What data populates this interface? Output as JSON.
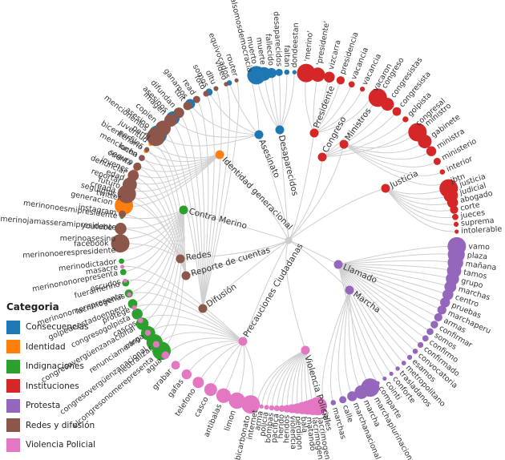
{
  "legend": {
    "title": "Categoria",
    "items": [
      {
        "label": "Consecuencias",
        "color": "#1f77b4"
      },
      {
        "label": "Identidad",
        "color": "#ff7f0e"
      },
      {
        "label": "Indignaciones",
        "color": "#2ca02c"
      },
      {
        "label": "Instituciones",
        "color": "#d62728"
      },
      {
        "label": "Protesta",
        "color": "#9467bd"
      },
      {
        "label": "Redes y difusión",
        "color": "#8c564b"
      },
      {
        "label": "Violencia Policial",
        "color": "#e377c2"
      }
    ]
  },
  "groups": [
    {
      "name": "Asesinato",
      "category": "Consecuencias",
      "leaves": [
        "asesino",
        "asesinos",
        "ganamos",
        "somos",
        "equivocados",
        "nosomoscristalsomosdemocracia"
      ]
    },
    {
      "name": "Desaparecidos",
      "category": "Consecuencias",
      "leaves": [
        "muerto",
        "muerte",
        "fallecido",
        "desaparecidos",
        "faltan",
        "dondeestan"
      ]
    },
    {
      "name": "Identidad generacional",
      "category": "Identidad",
      "leaves": [
        "generacion",
        "seguimos",
        "futuro",
        "edad",
        "jovenes",
        "seguro",
        "lucha",
        "bicentenario",
        "juventud"
      ]
    },
    {
      "name": "Contra Merino",
      "category": "Indignaciones",
      "leaves": [
        "elcongresonomerepresenta",
        "congresovergüenzanacional",
        "renunciamerino",
        "congresovergüenzanacional",
        "congresogolpista",
        "golpedeestadoenperu",
        "merinonomerepresenta",
        "fueramerino",
        "merinononorepresenta",
        "merinodictador",
        "merinonoerespresidente",
        "merinoasesino",
        "merinojamasseramipresidente",
        "merinonoesmipresidente"
      ]
    },
    {
      "name": "Presidente",
      "category": "Instituciones",
      "leaves": [
        "'merino'",
        "'presidente'",
        "vizcarra",
        "presidencia",
        "vacancia",
        "vacancia",
        "vacaron"
      ]
    },
    {
      "name": "Congreso",
      "category": "Instituciones",
      "leaves": [
        "congreso",
        "congresistas",
        "congresista",
        "golpista",
        "congresal"
      ]
    },
    {
      "name": "Ministros",
      "category": "Instituciones",
      "leaves": [
        "ministro",
        "gabinete",
        "ministra",
        "ministerio",
        "interior",
        "jbtn"
      ]
    },
    {
      "name": "Justicia",
      "category": "Instituciones",
      "leaves": [
        "justicia",
        "judicial",
        "abogado",
        "corte",
        "jueces",
        "suprema",
        "intolerable"
      ]
    },
    {
      "name": "Llamado",
      "category": "Protesta",
      "leaves": [
        "vamo",
        "plaza",
        "mañana",
        "tamos",
        "grupo",
        "marchas",
        "centro",
        "pruebas",
        "marchaperu",
        "armas",
        "confirmar",
        "somos",
        "confirmo",
        "confirmado",
        "convocatoria",
        "esamos",
        "metropolitano",
        "trasladanos",
        "conforte",
        "cointi",
        "comparte"
      ]
    },
    {
      "name": "Marcha",
      "category": "Protesta",
      "leaves": [
        "marchaplurinacional",
        "marcha",
        "marchanacional",
        "calle",
        "marchas",
        "calles"
      ]
    },
    {
      "name": "Redes",
      "category": "Redes y difusión",
      "leaves": [
        "facebook",
        "youtube",
        "instagram",
        "twitter"
      ]
    },
    {
      "name": "Reporte de cuentas",
      "category": "Redes y difusión",
      "leaves": [
        "creada",
        "reportar",
        "denunciar",
        "cuenta",
        "mencionen",
        "perfiles",
        "perfil"
      ]
    },
    {
      "name": "Difusión",
      "category": "Redes y difusión",
      "leaves": [
        "mencionenlos",
        "copien",
        "imagen",
        "difundan",
        "tuit",
        "read",
        "foto",
        "dltu",
        "video",
        "router"
      ]
    },
    {
      "name": "Precauciones Ciudadanas",
      "category": "Violencia Policial",
      "leaves": [
        "bicarbonato",
        "limon",
        "antibalas",
        "casco",
        "telefono",
        "gafas",
        "grabar",
        "agua",
        "neutralizar",
        "carga",
        "cascos",
        "protege",
        "lacrimogenas",
        "escudos",
        "masacre"
      ]
    },
    {
      "name": "Violencia Policial",
      "category": "Violencia Policial",
      "leaves": [
        "lacrimogeno",
        "lacrimogena",
        "matando",
        "bala",
        "perdigon",
        "violencia",
        "heridos",
        "herido",
        "pacifica",
        "bombas",
        "policia",
        "arma",
        "internet"
      ]
    }
  ]
}
